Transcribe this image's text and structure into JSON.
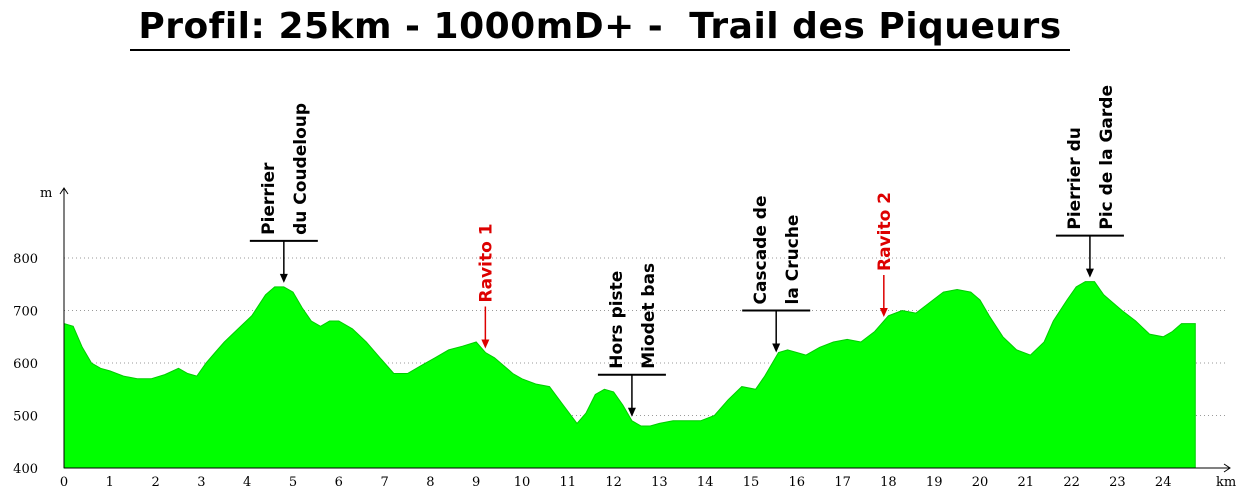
{
  "chart_data": {
    "type": "area",
    "title": "Profil: 25km - 1000mD+ -  Trail des Piqueurs",
    "xlabel": "km",
    "ylabel": "m",
    "xlim": [
      0,
      24.7
    ],
    "ylim": [
      400,
      900
    ],
    "xticks": [
      "0",
      "1",
      "2",
      "3",
      "4",
      "5",
      "6",
      "7",
      "8",
      "9",
      "10",
      "11",
      "12",
      "13",
      "14",
      "15",
      "16",
      "17",
      "18",
      "19",
      "20",
      "21",
      "22",
      "23",
      "24"
    ],
    "yticks": [
      "400",
      "500",
      "600",
      "700",
      "800"
    ],
    "grid": true,
    "fill_color": "#00ff00",
    "x": [
      0,
      0.2,
      0.4,
      0.6,
      0.8,
      1,
      1.3,
      1.6,
      1.9,
      2.2,
      2.5,
      2.7,
      2.9,
      3.1,
      3.3,
      3.5,
      3.8,
      4.1,
      4.4,
      4.6,
      4.8,
      5,
      5.2,
      5.4,
      5.6,
      5.8,
      6,
      6.3,
      6.6,
      6.9,
      7.2,
      7.5,
      7.8,
      8.1,
      8.4,
      8.7,
      9,
      9.2,
      9.4,
      9.6,
      9.8,
      10,
      10.3,
      10.6,
      10.9,
      11.2,
      11.4,
      11.6,
      11.8,
      12,
      12.2,
      12.4,
      12.6,
      12.8,
      13,
      13.3,
      13.6,
      13.9,
      14.2,
      14.5,
      14.8,
      15.1,
      15.3,
      15.6,
      15.8,
      16,
      16.2,
      16.5,
      16.8,
      17.1,
      17.4,
      17.7,
      18,
      18.3,
      18.6,
      18.9,
      19.2,
      19.5,
      19.8,
      20,
      20.2,
      20.5,
      20.8,
      21.1,
      21.4,
      21.6,
      21.9,
      22.1,
      22.3,
      22.5,
      22.7,
      22.9,
      23.1,
      23.4,
      23.7,
      24,
      24.2,
      24.4,
      24.6,
      24.7
    ],
    "y": [
      675,
      670,
      630,
      600,
      590,
      585,
      575,
      570,
      570,
      578,
      590,
      580,
      575,
      600,
      620,
      640,
      665,
      690,
      730,
      745,
      745,
      735,
      705,
      680,
      670,
      680,
      680,
      665,
      640,
      610,
      580,
      580,
      595,
      610,
      625,
      632,
      640,
      620,
      610,
      595,
      580,
      570,
      560,
      555,
      520,
      485,
      505,
      540,
      550,
      545,
      520,
      490,
      480,
      480,
      485,
      490,
      490,
      490,
      500,
      530,
      555,
      550,
      575,
      620,
      625,
      620,
      615,
      630,
      640,
      645,
      640,
      660,
      690,
      700,
      695,
      715,
      735,
      740,
      735,
      720,
      690,
      650,
      625,
      615,
      640,
      680,
      720,
      745,
      755,
      755,
      730,
      715,
      700,
      680,
      655,
      650,
      660,
      675,
      675,
      675
    ],
    "annotations": [
      {
        "lines": [
          "Pierrier",
          "du Coudeloup"
        ],
        "x": 4.8,
        "color": "#000000"
      },
      {
        "lines": [
          "Ravito 1"
        ],
        "x": 9.2,
        "color": "#dd0000"
      },
      {
        "lines": [
          "Hors piste",
          "Miodet bas"
        ],
        "x": 12.4,
        "color": "#000000"
      },
      {
        "lines": [
          "Cascade de",
          "la Cruche"
        ],
        "x": 15.55,
        "color": "#000000"
      },
      {
        "lines": [
          "Ravito 2"
        ],
        "x": 17.9,
        "color": "#dd0000"
      },
      {
        "lines": [
          "Pierrier du",
          "Pic de la Garde"
        ],
        "x": 22.4,
        "color": "#000000"
      }
    ]
  }
}
